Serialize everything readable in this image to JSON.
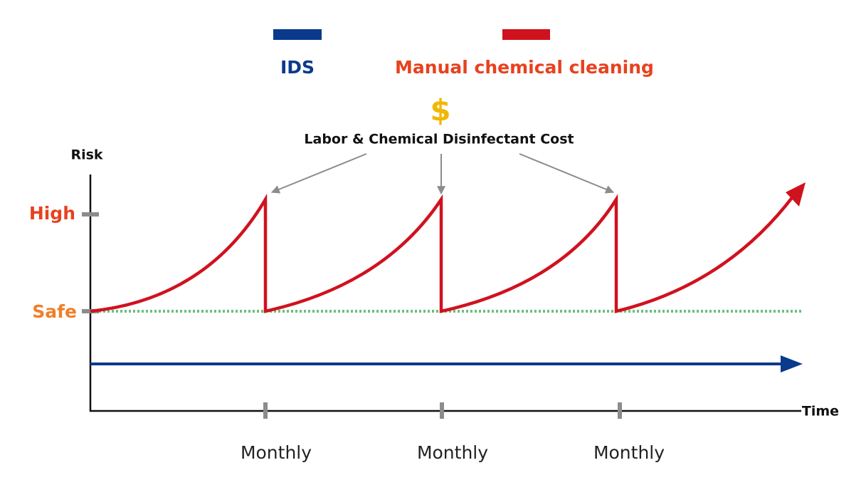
{
  "legend": [
    {
      "label": "IDS",
      "color": "#0a3a8c"
    },
    {
      "label": "Manual chemical cleaning",
      "color": "#d0121f"
    }
  ],
  "annotation": {
    "symbol": "$",
    "text": "Labor & Chemical Disinfectant Cost"
  },
  "axes": {
    "y_label": "Risk",
    "x_label": "Time"
  },
  "levels": [
    {
      "label": "High"
    },
    {
      "label": "Safe"
    }
  ],
  "periods": [
    "Monthly",
    "Monthly",
    "Monthly"
  ]
}
